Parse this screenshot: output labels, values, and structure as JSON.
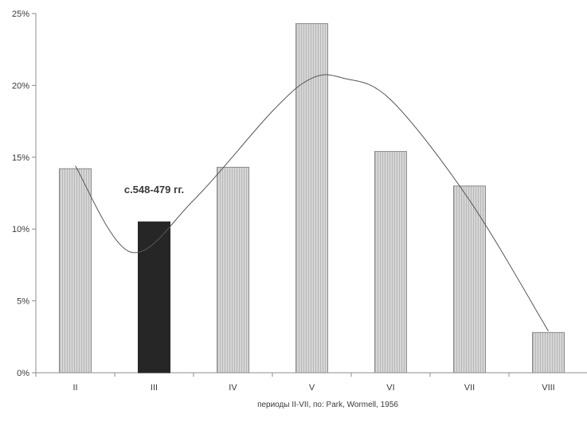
{
  "chart_data": {
    "type": "bar",
    "categories": [
      "II",
      "III",
      "IV",
      "V",
      "VI",
      "VII",
      "VIII"
    ],
    "values": [
      14.2,
      10.5,
      14.3,
      24.3,
      15.4,
      13.0,
      2.8
    ],
    "highlight_index": 1,
    "highlight_label": "c.548-479 гг.",
    "title": "",
    "xlabel": "периоды II-VII, по: Park, Wormell, 1956",
    "ylabel": "",
    "ylim": [
      0,
      25
    ],
    "yticks": [
      0,
      5,
      10,
      15,
      20,
      25
    ],
    "ytick_format": "percent",
    "grid": false,
    "legend": "none",
    "trendline": {
      "type": "polynomial",
      "points": [
        {
          "x": 0,
          "y": 14.4
        },
        {
          "x": 0.7,
          "y": 8.4
        },
        {
          "x": 1.5,
          "y": 12.0
        },
        {
          "x": 2.5,
          "y": 18.2
        },
        {
          "x": 3,
          "y": 20.5
        },
        {
          "x": 3.4,
          "y": 20.5
        },
        {
          "x": 4,
          "y": 19.0
        },
        {
          "x": 5,
          "y": 12.0
        },
        {
          "x": 6,
          "y": 2.9
        }
      ]
    },
    "colors": {
      "bar_fill": "#d6d6d6",
      "bar_hatch": "#b7b7b7",
      "bar_edge": "#8a8a8a",
      "highlight_fill": "#262626",
      "trend_line": "#555555",
      "axis": "#8c8c8c",
      "text": "#3a3a3a"
    }
  }
}
